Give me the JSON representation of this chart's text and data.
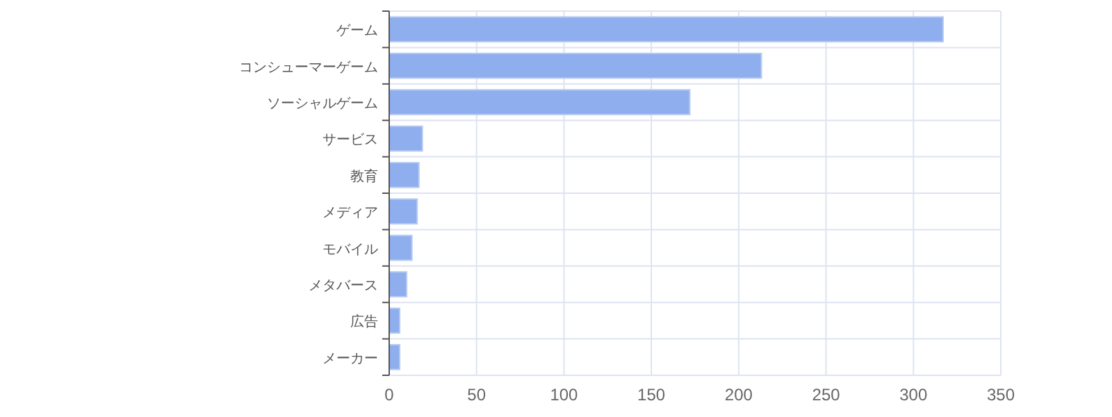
{
  "chart_data": {
    "type": "bar",
    "orientation": "horizontal",
    "categories": [
      "ゲーム",
      "コンシューマーゲーム",
      "ソーシャルゲーム",
      "サービス",
      "教育",
      "メディア",
      "モバイル",
      "メタバース",
      "広告",
      "メーカー"
    ],
    "values": [
      317,
      213,
      172,
      19,
      17,
      16,
      13,
      10,
      6,
      6
    ],
    "color": "#8eaeed",
    "xlim": [
      0,
      350
    ],
    "xticks": [
      0,
      50,
      100,
      150,
      200,
      250,
      300,
      350
    ],
    "grid": true
  }
}
